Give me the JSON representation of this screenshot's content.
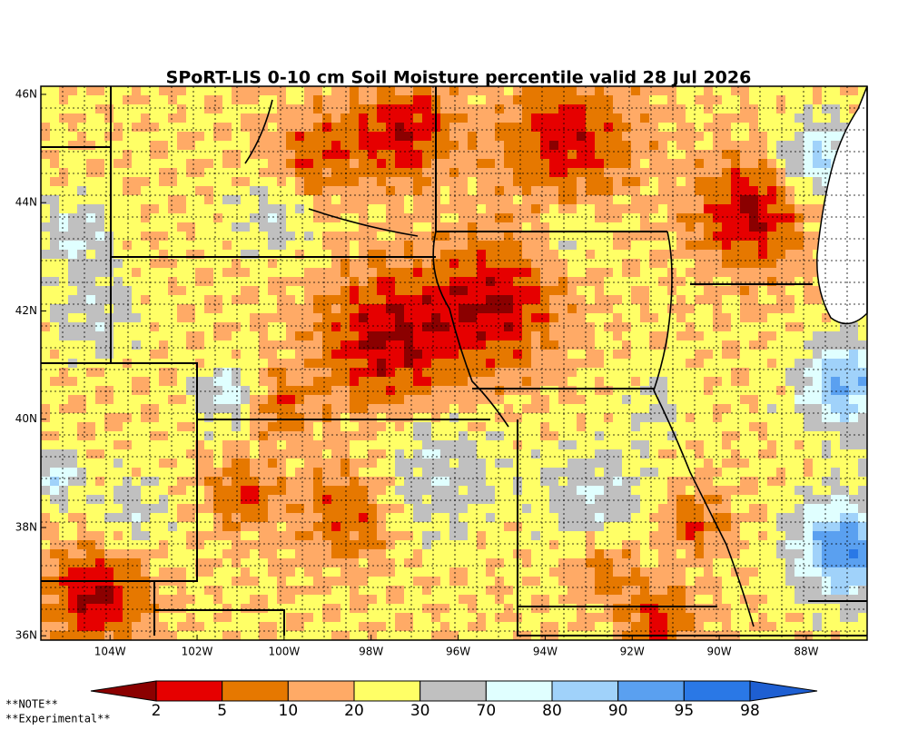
{
  "title": "SPoRT-LIS 0-10 cm Soil Moisture percentile valid 28 Jul 2026",
  "map": {
    "xlim": [
      -105.59,
      -86.6
    ],
    "ylim": [
      35.92,
      46.15
    ],
    "xticks": [
      {
        "value": -104,
        "label": "104W"
      },
      {
        "value": -102,
        "label": "102W"
      },
      {
        "value": -100,
        "label": "100W"
      },
      {
        "value": -98,
        "label": "98W"
      },
      {
        "value": -96,
        "label": "96W"
      },
      {
        "value": -94,
        "label": "94W"
      },
      {
        "value": -92,
        "label": "92W"
      },
      {
        "value": -90,
        "label": "90W"
      },
      {
        "value": -88,
        "label": "88W"
      }
    ],
    "yticks": [
      {
        "value": 46,
        "label": "46N"
      },
      {
        "value": 44,
        "label": "44N"
      },
      {
        "value": 42,
        "label": "42N"
      },
      {
        "value": 40,
        "label": "40N"
      },
      {
        "value": 38,
        "label": "38N"
      },
      {
        "value": 36,
        "label": "36N"
      }
    ]
  },
  "colorbar": {
    "bounds": [
      2,
      5,
      10,
      20,
      30,
      70,
      80,
      90,
      95,
      98
    ],
    "colors": [
      "#8b0000",
      "#e60000",
      "#e67800",
      "#ffaa66",
      "#ffff66",
      "#c0c0c0",
      "#e0ffff",
      "#a0d2fa",
      "#5aa0f0",
      "#2a78e6",
      "#1e5fd2"
    ]
  },
  "notes": [
    "**NOTE**",
    "**Experimental**"
  ]
}
